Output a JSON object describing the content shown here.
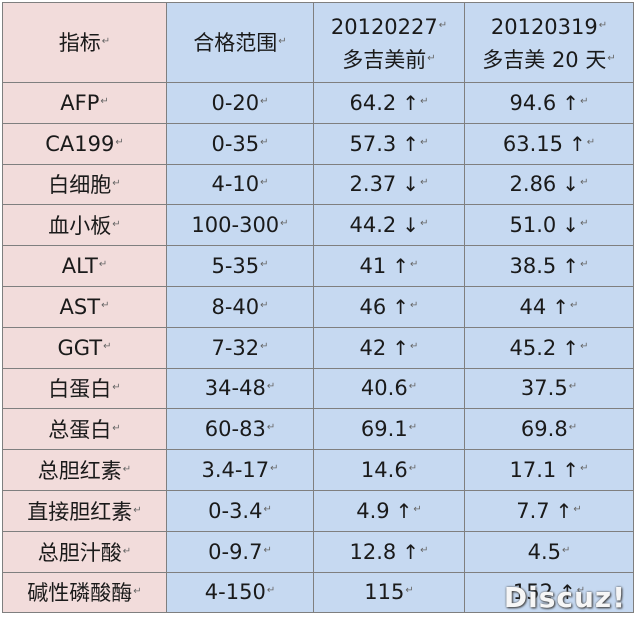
{
  "columns": [
    "指标",
    "合格范围",
    "20120227 多吉美前",
    "20120319 多吉美 20 天"
  ],
  "header": {
    "col1": "指标",
    "col2": "合格范围",
    "col3_line1": "20120227",
    "col3_line2": "多吉美前",
    "col4_line1": "20120319",
    "col4_line2": "多吉美 20 天"
  },
  "paragraph_mark": "↵",
  "rows": [
    {
      "name": "AFP",
      "range": "0-20",
      "v1": "64.2",
      "a1": "↑",
      "v2": "94.6",
      "a2": "↑"
    },
    {
      "name": "CA199",
      "range": "0-35",
      "v1": "57.3",
      "a1": "↑",
      "v2": "63.15",
      "a2": "↑"
    },
    {
      "name": "白细胞",
      "range": "4-10",
      "v1": "2.37",
      "a1": "↓",
      "v2": "2.86",
      "a2": "↓"
    },
    {
      "name": "血小板",
      "range": "100-300",
      "v1": "44.2",
      "a1": "↓",
      "v2": "51.0",
      "a2": "↓"
    },
    {
      "name": "ALT",
      "range": "5-35",
      "v1": "41",
      "a1": "↑",
      "v2": "38.5",
      "a2": "↑"
    },
    {
      "name": "AST",
      "range": "8-40",
      "v1": "46",
      "a1": "↑",
      "v2": "44",
      "a2": "↑"
    },
    {
      "name": "GGT",
      "range": "7-32",
      "v1": "42",
      "a1": "↑",
      "v2": "45.2",
      "a2": "↑"
    },
    {
      "name": "白蛋白",
      "range": "34-48",
      "v1": "40.6",
      "a1": "",
      "v2": "37.5",
      "a2": ""
    },
    {
      "name": "总蛋白",
      "range": "60-83",
      "v1": "69.1",
      "a1": "",
      "v2": "69.8",
      "a2": ""
    },
    {
      "name": "总胆红素",
      "range": "3.4-17",
      "v1": "14.6",
      "a1": "",
      "v2": "17.1",
      "a2": "↑"
    },
    {
      "name": "直接胆红素",
      "range": "0-3.4",
      "v1": "4.9",
      "a1": "↑",
      "v2": "7.7",
      "a2": "↑"
    },
    {
      "name": "总胆汁酸",
      "range": "0-9.7",
      "v1": "12.8",
      "a1": "↑",
      "v2": "4.5",
      "a2": ""
    },
    {
      "name": "碱性磷酸酶",
      "range": "4-150",
      "v1": "115",
      "a1": "",
      "v2": "152",
      "a2": "↑"
    }
  ],
  "watermark": "Discuz!"
}
